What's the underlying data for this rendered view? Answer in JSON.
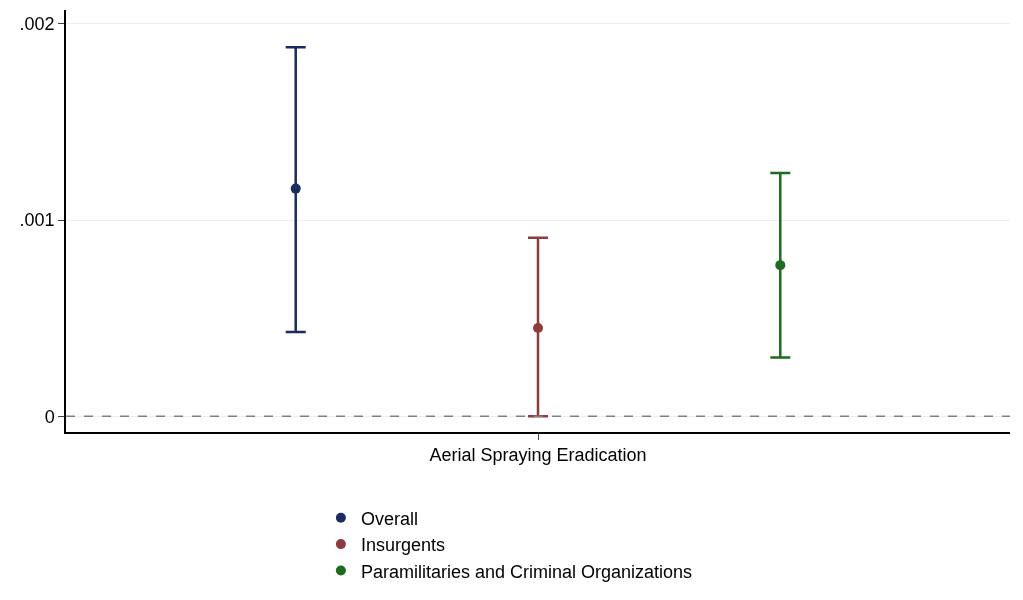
{
  "chart_data": {
    "type": "scatter",
    "categories": [
      "Aerial Spraying Eradication"
    ],
    "series": [
      {
        "name": "Overall",
        "color": "#1a2b5f",
        "values": [
          0.00116
        ],
        "errors": [
          [
            0.00043,
            0.00188
          ]
        ]
      },
      {
        "name": "Insurgents",
        "color": "#8f3a3f",
        "values": [
          0.00045
        ],
        "errors": [
          [
            0.0,
            0.00091
          ]
        ]
      },
      {
        "name": "Paramilitaries and Criminal Organizations",
        "color": "#1e6b1e",
        "values": [
          0.00077
        ],
        "errors": [
          [
            0.0003,
            0.00124
          ]
        ]
      }
    ],
    "ylim": [
      -8e-05,
      0.00207
    ],
    "yticks": [
      {
        "value": 0,
        "label": "0"
      },
      {
        "value": 0.001,
        "label": ".001"
      },
      {
        "value": 0.002,
        "label": ".002"
      }
    ],
    "ref_lines": [
      {
        "axis": "y",
        "value": 0,
        "color": "#808080",
        "line_style": "dashed"
      }
    ],
    "grid": "y",
    "legend": "bottom",
    "marker": "circle"
  }
}
